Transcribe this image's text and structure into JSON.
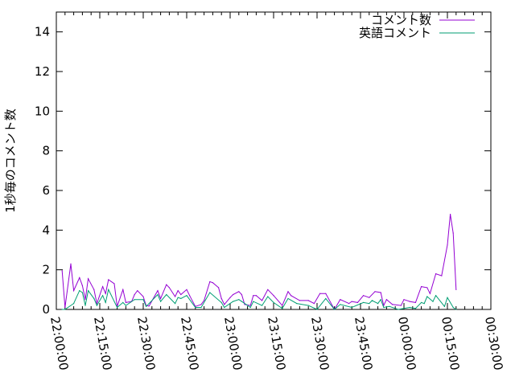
{
  "chart_data": {
    "type": "line",
    "title": "",
    "xlabel": "",
    "ylabel": "1秒毎のコメント数",
    "ylim": [
      0,
      15
    ],
    "xlim": [
      "22:00:00",
      "00:30:00"
    ],
    "yticks": [
      "0",
      "2",
      "4",
      "6",
      "8",
      "10",
      "12",
      "14"
    ],
    "xticks": [
      "22:00:00",
      "22:15:00",
      "22:30:00",
      "22:45:00",
      "23:00:00",
      "23:15:00",
      "23:30:00",
      "23:45:00",
      "00:00:00",
      "00:15:00",
      "00:30:00"
    ],
    "grid": false,
    "legend_placement": "top-right",
    "series": [
      {
        "name": "コメント数",
        "color": "#9400d3",
        "x": [
          "22:02",
          "22:03",
          "22:05",
          "22:06",
          "22:08",
          "22:09",
          "22:10",
          "22:11",
          "22:13",
          "22:14",
          "22:16",
          "22:17",
          "22:18",
          "22:20",
          "22:21",
          "22:23",
          "22:24",
          "22:26",
          "22:27",
          "22:28",
          "22:30",
          "22:31",
          "22:32",
          "22:35",
          "22:36",
          "22:38",
          "22:39",
          "22:41",
          "22:42",
          "22:43",
          "22:45",
          "22:46",
          "22:48",
          "22:50",
          "22:51",
          "22:53",
          "22:54",
          "22:56",
          "22:57",
          "22:58",
          "23:00",
          "23:01",
          "23:03",
          "23:04",
          "23:05",
          "23:07",
          "23:08",
          "23:09",
          "23:11",
          "23:13",
          "23:15",
          "23:18",
          "23:20",
          "23:21",
          "23:24",
          "23:27",
          "23:29",
          "23:31",
          "23:33",
          "23:36",
          "23:38",
          "23:41",
          "23:42",
          "23:44",
          "23:46",
          "23:48",
          "23:50",
          "23:52",
          "23:53",
          "23:54",
          "23:56",
          "23:59",
          "00:00",
          "00:02",
          "00:04",
          "00:06",
          "00:08",
          "00:09",
          "00:11",
          "00:13",
          "00:15",
          "00:16",
          "00:17",
          "00:18"
        ],
        "values": [
          1.95,
          0.1,
          2.3,
          0.95,
          1.6,
          1.2,
          0.5,
          1.55,
          1.0,
          0.3,
          1.15,
          0.8,
          1.5,
          1.3,
          0.15,
          1.0,
          0.35,
          0.4,
          0.75,
          0.95,
          0.65,
          0.2,
          0.17,
          0.95,
          0.55,
          1.25,
          1.1,
          0.65,
          0.95,
          0.75,
          1.0,
          0.7,
          0.15,
          0.25,
          0.45,
          1.4,
          1.35,
          1.1,
          0.55,
          0.25,
          0.6,
          0.75,
          0.9,
          0.75,
          0.25,
          0.2,
          0.7,
          0.7,
          0.45,
          1.0,
          0.7,
          0.2,
          0.9,
          0.7,
          0.45,
          0.45,
          0.3,
          0.8,
          0.8,
          0.0,
          0.5,
          0.3,
          0.4,
          0.35,
          0.7,
          0.6,
          0.9,
          0.85,
          0.2,
          0.5,
          0.25,
          0.2,
          0.5,
          0.4,
          0.35,
          1.15,
          1.1,
          0.8,
          1.8,
          1.7,
          3.25,
          4.8,
          3.85,
          1.0
        ]
      },
      {
        "name": "英語コメント",
        "color": "#009e73",
        "x": [
          "22:02",
          "22:03",
          "22:06",
          "22:08",
          "22:09",
          "22:10",
          "22:11",
          "22:13",
          "22:14",
          "22:16",
          "22:17",
          "22:18",
          "22:21",
          "22:23",
          "22:24",
          "22:27",
          "22:30",
          "22:31",
          "22:35",
          "22:36",
          "22:38",
          "22:41",
          "22:42",
          "22:43",
          "22:45",
          "22:48",
          "22:50",
          "22:53",
          "22:57",
          "22:58",
          "23:01",
          "23:03",
          "23:04",
          "23:07",
          "23:08",
          "23:11",
          "23:13",
          "23:15",
          "23:18",
          "23:20",
          "23:23",
          "23:27",
          "23:30",
          "23:33",
          "23:36",
          "23:38",
          "23:42",
          "23:46",
          "23:48",
          "23:49",
          "23:51",
          "23:52",
          "23:53",
          "23:55",
          "23:58",
          "00:02",
          "00:04",
          "00:06",
          "00:07",
          "00:08",
          "00:10",
          "00:11",
          "00:14",
          "00:15",
          "00:17",
          "00:18"
        ],
        "values": [
          0.0,
          0.0,
          0.3,
          0.95,
          0.85,
          0.2,
          0.95,
          0.55,
          0.2,
          0.7,
          0.35,
          1.0,
          0.1,
          0.35,
          0.2,
          0.5,
          0.5,
          0.15,
          0.75,
          0.4,
          0.75,
          0.3,
          0.6,
          0.55,
          0.7,
          0.1,
          0.1,
          0.85,
          0.35,
          0.1,
          0.4,
          0.5,
          0.4,
          0.1,
          0.4,
          0.2,
          0.65,
          0.35,
          0.05,
          0.55,
          0.3,
          0.2,
          0.0,
          0.55,
          0.0,
          0.25,
          0.1,
          0.35,
          0.3,
          0.45,
          0.3,
          0.5,
          0.1,
          0.15,
          0.0,
          0.1,
          0.05,
          0.35,
          0.3,
          0.65,
          0.4,
          0.7,
          0.15,
          0.6,
          0.1,
          0.0
        ]
      }
    ]
  }
}
